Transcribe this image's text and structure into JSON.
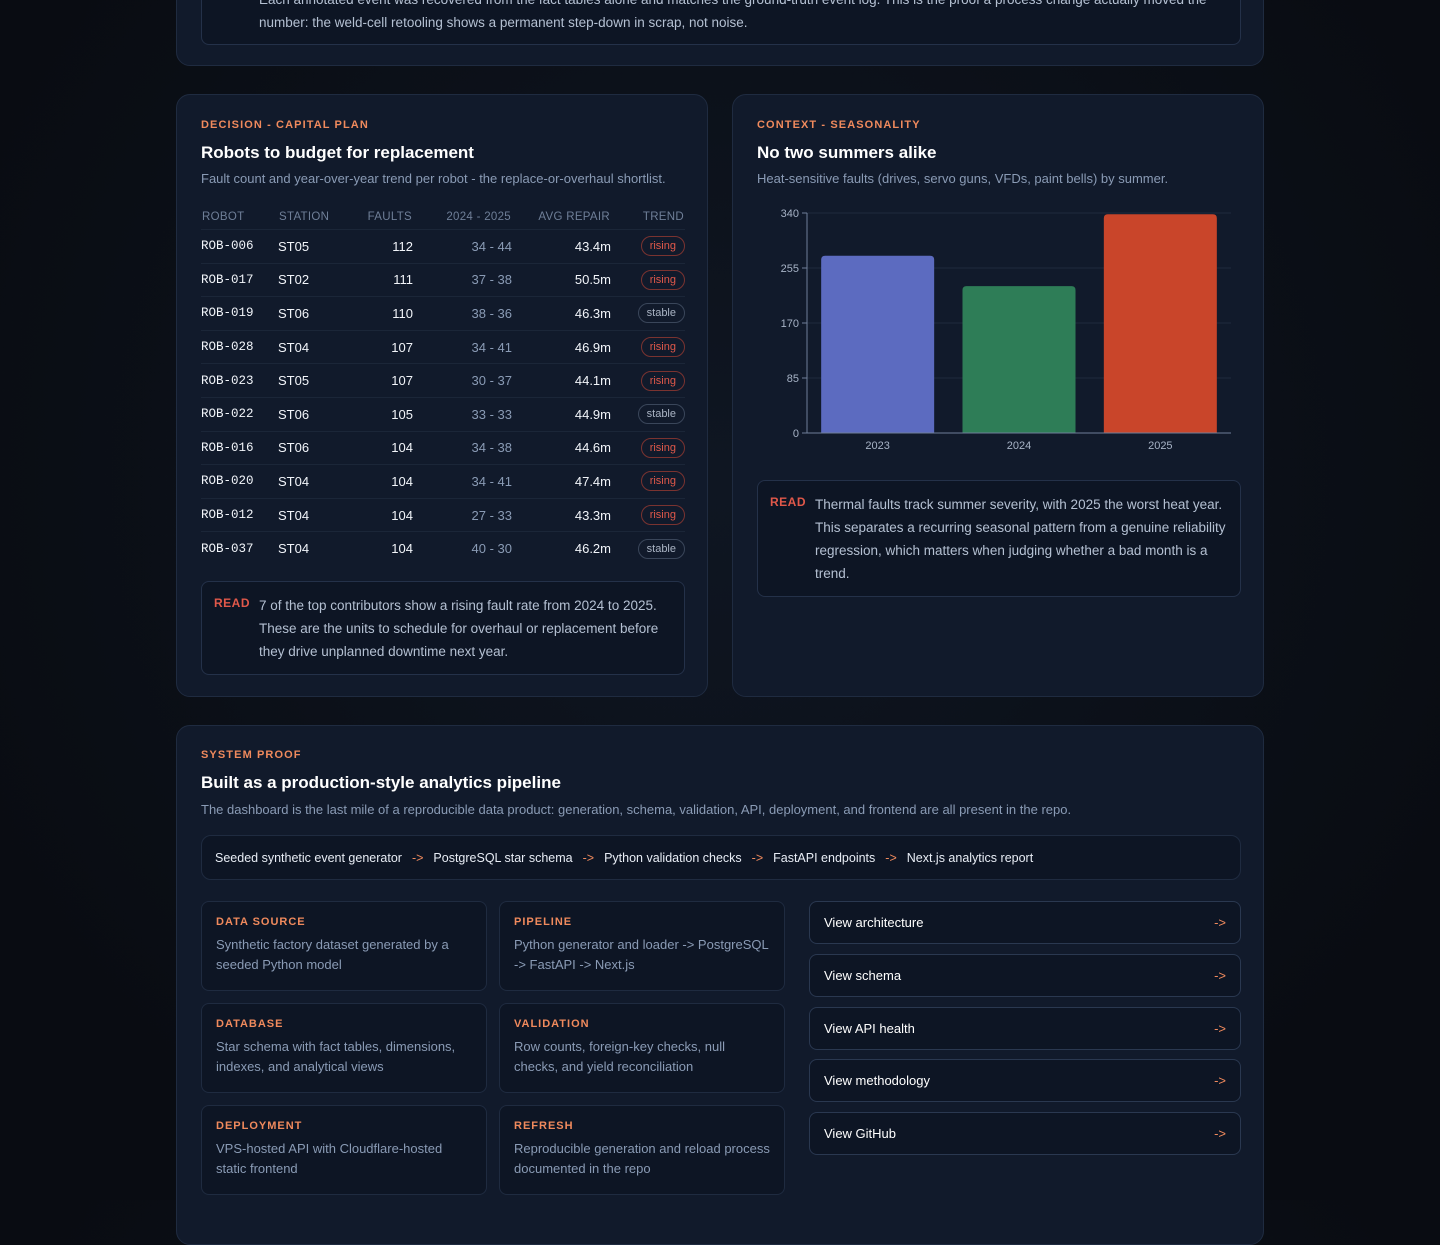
{
  "intro": {
    "read_text": "Each annotated event was recovered from the fact tables alone and matches the ground-truth event log. This is the proof a process change actually moved the number: the weld-cell retooling shows a permanent step-down in scrap, not noise."
  },
  "capital_plan": {
    "eyebrow": "DECISION - CAPITAL PLAN",
    "title": "Robots to budget for replacement",
    "subtitle": "Fault count and year-over-year trend per robot - the replace-or-overhaul shortlist.",
    "table": {
      "headers": [
        "ROBOT",
        "STATION",
        "FAULTS",
        "2024 - 2025",
        "AVG REPAIR",
        "TREND"
      ],
      "rows": [
        [
          "ROB-006",
          "ST05",
          112,
          "34 - 44",
          "43.4m",
          "rising"
        ],
        [
          "ROB-017",
          "ST02",
          111,
          "37 - 38",
          "50.5m",
          "rising"
        ],
        [
          "ROB-019",
          "ST06",
          110,
          "38 - 36",
          "46.3m",
          "stable"
        ],
        [
          "ROB-028",
          "ST04",
          107,
          "34 - 41",
          "46.9m",
          "rising"
        ],
        [
          "ROB-023",
          "ST05",
          107,
          "30 - 37",
          "44.1m",
          "rising"
        ],
        [
          "ROB-022",
          "ST06",
          105,
          "33 - 33",
          "44.9m",
          "stable"
        ],
        [
          "ROB-016",
          "ST06",
          104,
          "34 - 38",
          "44.6m",
          "rising"
        ],
        [
          "ROB-020",
          "ST04",
          104,
          "34 - 41",
          "47.4m",
          "rising"
        ],
        [
          "ROB-012",
          "ST04",
          104,
          "27 - 33",
          "43.3m",
          "rising"
        ],
        [
          "ROB-037",
          "ST04",
          104,
          "40 - 30",
          "46.2m",
          "stable"
        ]
      ]
    },
    "read_label": "READ",
    "read_text": "7 of the top contributors show a rising fault rate from 2024 to 2025. These are the units to schedule for overhaul or replacement before they drive unplanned downtime next year."
  },
  "seasonality": {
    "eyebrow": "CONTEXT - SEASONALITY",
    "title": "No two summers alike",
    "subtitle": "Heat-sensitive faults (drives, servo guns, VFDs, paint bells) by summer.",
    "read_label": "READ",
    "read_text": "Thermal faults track summer severity, with 2025 the worst heat year. This separates a recurring seasonal pattern from a genuine reliability regression, which matters when judging whether a bad month is a trend."
  },
  "chart_data": {
    "type": "bar",
    "categories": [
      "2023",
      "2024",
      "2025"
    ],
    "values": [
      274,
      227,
      338
    ],
    "colors": [
      "#5c6bc0",
      "#2e7d57",
      "#c9452a"
    ],
    "ylim": [
      0,
      340
    ],
    "yticks": [
      0,
      85,
      170,
      255,
      340
    ],
    "grid": true
  },
  "system_proof": {
    "eyebrow": "SYSTEM PROOF",
    "title": "Built as a production-style analytics pipeline",
    "subtitle": "The dashboard is the last mile of a reproducible data product: generation, schema, validation, API, deployment, and frontend are all present in the repo.",
    "pipeline": {
      "steps": [
        "Seeded synthetic event generator",
        "PostgreSQL star schema",
        "Python validation checks",
        "FastAPI endpoints",
        "Next.js analytics report"
      ],
      "separator": "->"
    },
    "tiles": [
      {
        "label": "DATA SOURCE",
        "text": "Synthetic factory dataset generated by a seeded Python model"
      },
      {
        "label": "PIPELINE",
        "text": "Python generator and loader -> PostgreSQL -> FastAPI -> Next.js"
      },
      {
        "label": "DATABASE",
        "text": "Star schema with fact tables, dimensions, indexes, and analytical views"
      },
      {
        "label": "VALIDATION",
        "text": "Row counts, foreign-key checks, null checks, and yield reconciliation"
      },
      {
        "label": "DEPLOYMENT",
        "text": "VPS-hosted API with Cloudflare-hosted static frontend"
      },
      {
        "label": "REFRESH",
        "text": "Reproducible generation and reload process documented in the repo"
      }
    ],
    "links": {
      "items": [
        "View architecture",
        "View schema",
        "View API health",
        "View methodology",
        "View GitHub"
      ],
      "arrow": "->"
    }
  }
}
